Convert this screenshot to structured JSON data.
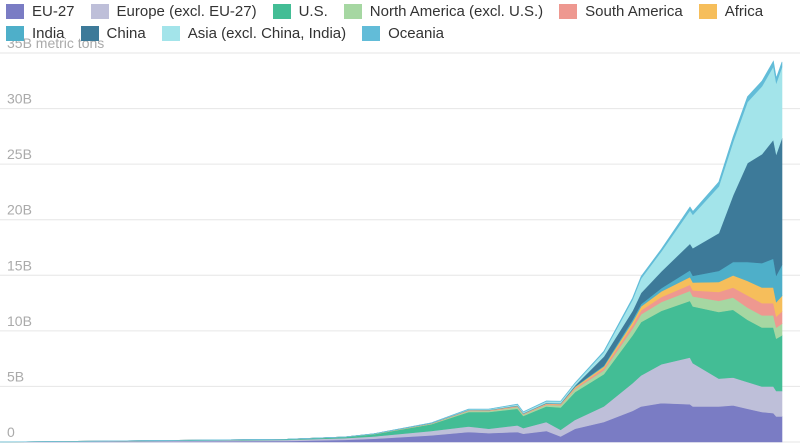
{
  "chart_data": {
    "type": "area",
    "stacked": true,
    "title": "",
    "xlabel": "",
    "ylabel": "",
    "unit_label": "metric tons",
    "y_ticks": [
      {
        "value": 0,
        "label": "0"
      },
      {
        "value": 5,
        "label": "5B"
      },
      {
        "value": 10,
        "label": "10B"
      },
      {
        "value": 15,
        "label": "15B"
      },
      {
        "value": 20,
        "label": "20B"
      },
      {
        "value": 25,
        "label": "25B"
      },
      {
        "value": 30,
        "label": "30B"
      },
      {
        "value": 35,
        "label": "35B"
      }
    ],
    "ylim": [
      0,
      35
    ],
    "xlim": [
      1750,
      2022
    ],
    "grid": true,
    "legend_position": "top",
    "x": [
      1750,
      1850,
      1870,
      1880,
      1900,
      1913,
      1920,
      1930,
      1932,
      1940,
      1945,
      1950,
      1960,
      1970,
      1973,
      1980,
      1990,
      1991,
      2000,
      2005,
      2010,
      2015,
      2019,
      2020,
      2022
    ],
    "series": [
      {
        "name": "EU-27",
        "color": "#7a7cc4",
        "values": [
          0,
          0.1,
          0.2,
          0.3,
          0.6,
          0.9,
          0.8,
          0.9,
          0.75,
          1.0,
          0.5,
          1.2,
          1.8,
          2.8,
          3.2,
          3.5,
          3.4,
          3.2,
          3.2,
          3.3,
          3.0,
          2.7,
          2.6,
          2.3,
          2.3
        ]
      },
      {
        "name": "Europe (excl. EU-27)",
        "color": "#bebfd9",
        "values": [
          0,
          0.1,
          0.15,
          0.2,
          0.4,
          0.5,
          0.4,
          0.6,
          0.5,
          0.8,
          0.6,
          0.8,
          1.4,
          2.5,
          2.8,
          3.5,
          4.2,
          3.9,
          2.5,
          2.5,
          2.4,
          2.3,
          2.4,
          2.3,
          2.3
        ]
      },
      {
        "name": "U.S.",
        "color": "#43bd95",
        "values": [
          0,
          0.05,
          0.1,
          0.2,
          0.6,
          1.3,
          1.5,
          1.5,
          1.1,
          1.4,
          2.0,
          2.5,
          2.9,
          4.3,
          4.8,
          4.8,
          5.1,
          5.1,
          6.0,
          6.1,
          5.6,
          5.3,
          5.3,
          4.7,
          5.0
        ]
      },
      {
        "name": "North America (excl. U.S.)",
        "color": "#a6d7a2",
        "values": [
          0,
          0,
          0.01,
          0.02,
          0.05,
          0.1,
          0.1,
          0.15,
          0.12,
          0.15,
          0.2,
          0.25,
          0.35,
          0.6,
          0.7,
          0.8,
          0.9,
          0.9,
          1.0,
          1.1,
          1.1,
          1.1,
          1.1,
          1.0,
          1.05
        ]
      },
      {
        "name": "South America",
        "color": "#ee9890",
        "values": [
          0,
          0,
          0,
          0.01,
          0.02,
          0.04,
          0.04,
          0.06,
          0.05,
          0.07,
          0.08,
          0.1,
          0.18,
          0.3,
          0.35,
          0.45,
          0.55,
          0.55,
          0.8,
          0.9,
          1.1,
          1.1,
          1.1,
          1.0,
          1.1
        ]
      },
      {
        "name": "Africa",
        "color": "#f6be5b",
        "values": [
          0,
          0,
          0,
          0.01,
          0.01,
          0.02,
          0.02,
          0.03,
          0.03,
          0.04,
          0.05,
          0.1,
          0.15,
          0.3,
          0.35,
          0.5,
          0.7,
          0.7,
          0.9,
          1.1,
          1.3,
          1.4,
          1.4,
          1.3,
          1.4
        ]
      },
      {
        "name": "India",
        "color": "#4eafc9",
        "values": [
          0,
          0,
          0,
          0,
          0.01,
          0.02,
          0.02,
          0.03,
          0.03,
          0.03,
          0.03,
          0.05,
          0.1,
          0.2,
          0.22,
          0.3,
          0.6,
          0.6,
          1.0,
          1.2,
          1.7,
          2.2,
          2.6,
          2.4,
          2.8
        ]
      },
      {
        "name": "China",
        "color": "#3d7a99",
        "values": [
          0,
          0,
          0,
          0,
          0.01,
          0.01,
          0.02,
          0.02,
          0.02,
          0.03,
          0.03,
          0.08,
          0.8,
          0.8,
          1.0,
          1.5,
          2.4,
          2.5,
          3.4,
          6.0,
          8.9,
          9.8,
          10.7,
          10.9,
          11.4
        ]
      },
      {
        "name": "Asia (excl. China, India)",
        "color": "#a3e4ea",
        "values": [
          0,
          0,
          0,
          0,
          0.02,
          0.05,
          0.05,
          0.1,
          0.1,
          0.15,
          0.15,
          0.2,
          0.4,
          1.0,
          1.3,
          1.8,
          3.0,
          3.0,
          4.2,
          4.8,
          5.5,
          6.1,
          6.6,
          6.4,
          6.4
        ]
      },
      {
        "name": "Oceania",
        "color": "#62bcd8",
        "values": [
          0,
          0,
          0,
          0.01,
          0.01,
          0.02,
          0.02,
          0.02,
          0.02,
          0.03,
          0.03,
          0.04,
          0.08,
          0.15,
          0.18,
          0.2,
          0.3,
          0.3,
          0.4,
          0.45,
          0.48,
          0.47,
          0.47,
          0.45,
          0.45
        ]
      }
    ]
  }
}
